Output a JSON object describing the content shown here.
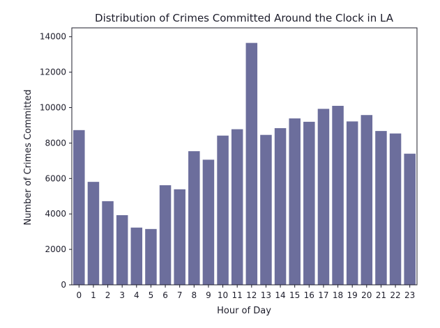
{
  "chart_data": {
    "type": "bar",
    "title": "Distribution of Crimes Committed Around the Clock in LA",
    "xlabel": "Hour of Day",
    "ylabel": "Number of Crimes Committed",
    "categories": [
      "0",
      "1",
      "2",
      "3",
      "4",
      "5",
      "6",
      "7",
      "8",
      "9",
      "10",
      "11",
      "12",
      "13",
      "14",
      "15",
      "16",
      "17",
      "18",
      "19",
      "20",
      "21",
      "22",
      "23"
    ],
    "values": [
      8730,
      5810,
      4720,
      3930,
      3230,
      3150,
      5620,
      5390,
      7540,
      7060,
      8420,
      8780,
      13650,
      8460,
      8840,
      9390,
      9200,
      9930,
      10100,
      9220,
      9580,
      8680,
      8540,
      7400
    ],
    "ylim": [
      0,
      14500
    ],
    "yticks": [
      0,
      2000,
      4000,
      6000,
      8000,
      10000,
      12000,
      14000
    ],
    "bar_color": "#6c6e9c",
    "grid": false,
    "legend": "none"
  }
}
